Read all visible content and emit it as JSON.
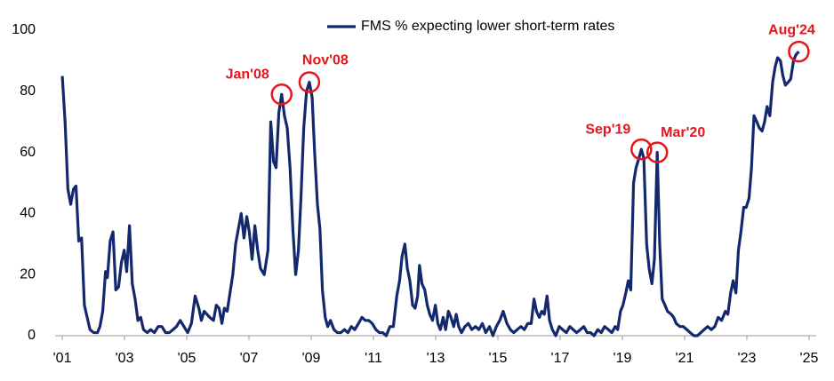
{
  "chart_data": {
    "type": "line",
    "x": [
      2001.0,
      2001.09,
      2001.18,
      2001.27,
      2001.36,
      2001.44,
      2001.53,
      2001.62,
      2001.71,
      2001.8,
      2001.89,
      2002.01,
      2002.13,
      2002.21,
      2002.3,
      2002.39,
      2002.45,
      2002.54,
      2002.63,
      2002.72,
      2002.81,
      2002.9,
      2002.99,
      2003.07,
      2003.16,
      2003.25,
      2003.34,
      2003.43,
      2003.52,
      2003.61,
      2003.73,
      2003.84,
      2003.96,
      2004.08,
      2004.2,
      2004.32,
      2004.44,
      2004.56,
      2004.67,
      2004.79,
      2004.91,
      2005.03,
      2005.15,
      2005.27,
      2005.39,
      2005.47,
      2005.56,
      2005.65,
      2005.74,
      2005.86,
      2005.95,
      2006.04,
      2006.13,
      2006.21,
      2006.3,
      2006.39,
      2006.48,
      2006.57,
      2006.66,
      2006.75,
      2006.84,
      2006.93,
      2007.01,
      2007.1,
      2007.19,
      2007.28,
      2007.37,
      2007.49,
      2007.61,
      2007.7,
      2007.79,
      2007.87,
      2007.96,
      2008.05,
      2008.14,
      2008.23,
      2008.32,
      2008.41,
      2008.5,
      2008.59,
      2008.67,
      2008.76,
      2008.85,
      2008.94,
      2009.03,
      2009.11,
      2009.2,
      2009.28,
      2009.36,
      2009.45,
      2009.53,
      2009.62,
      2009.73,
      2009.84,
      2009.95,
      2010.07,
      2010.18,
      2010.29,
      2010.4,
      2010.52,
      2010.63,
      2010.74,
      2010.85,
      2010.96,
      2011.08,
      2011.19,
      2011.3,
      2011.41,
      2011.53,
      2011.64,
      2011.75,
      2011.84,
      2011.92,
      2012.01,
      2012.09,
      2012.17,
      2012.26,
      2012.34,
      2012.42,
      2012.48,
      2012.56,
      2012.65,
      2012.73,
      2012.81,
      2012.9,
      2012.99,
      2013.07,
      2013.15,
      2013.24,
      2013.32,
      2013.41,
      2013.49,
      2013.58,
      2013.66,
      2013.74,
      2013.83,
      2013.94,
      2014.05,
      2014.16,
      2014.28,
      2014.39,
      2014.5,
      2014.61,
      2014.73,
      2014.84,
      2014.95,
      2015.06,
      2015.17,
      2015.29,
      2015.4,
      2015.51,
      2015.62,
      2015.74,
      2015.85,
      2015.96,
      2016.07,
      2016.16,
      2016.24,
      2016.33,
      2016.41,
      2016.49,
      2016.58,
      2016.66,
      2016.75,
      2016.86,
      2016.97,
      2017.08,
      2017.2,
      2017.31,
      2017.42,
      2017.53,
      2017.65,
      2017.76,
      2017.87,
      2017.98,
      2018.09,
      2018.21,
      2018.32,
      2018.43,
      2018.55,
      2018.66,
      2018.77,
      2018.85,
      2018.94,
      2019.02,
      2019.11,
      2019.19,
      2019.27,
      2019.36,
      2019.44,
      2019.53,
      2019.61,
      2019.69,
      2019.78,
      2019.86,
      2019.95,
      2020.03,
      2020.12,
      2020.2,
      2020.28,
      2020.37,
      2020.45,
      2020.57,
      2020.65,
      2020.73,
      2020.85,
      2020.96,
      2021.07,
      2021.18,
      2021.3,
      2021.41,
      2021.52,
      2021.63,
      2021.74,
      2021.86,
      2021.97,
      2022.08,
      2022.19,
      2022.31,
      2022.39,
      2022.48,
      2022.56,
      2022.65,
      2022.73,
      2022.81,
      2022.9,
      2022.98,
      2023.07,
      2023.15,
      2023.23,
      2023.32,
      2023.4,
      2023.49,
      2023.57,
      2023.65,
      2023.74,
      2023.83,
      2023.91,
      2023.99,
      2024.08,
      2024.16,
      2024.24,
      2024.33,
      2024.41,
      2024.5,
      2024.58,
      2024.67
    ],
    "series": [
      {
        "name": "FMS % expecting lower short-term rates",
        "color": "#14286e",
        "values": [
          85,
          70,
          48,
          43,
          48,
          49,
          31,
          32,
          10,
          6,
          2,
          1,
          1,
          3,
          8,
          21,
          19,
          31,
          34,
          15,
          16,
          24,
          28,
          21,
          36,
          17,
          12,
          5,
          6,
          2,
          1,
          2,
          1,
          3,
          3,
          1,
          1,
          2,
          3,
          5,
          3,
          1,
          4,
          13,
          9,
          5,
          8,
          7,
          6,
          5,
          10,
          9,
          4,
          9,
          8,
          14,
          20,
          30,
          35,
          40,
          32,
          39,
          34,
          25,
          36,
          28,
          22,
          20,
          28,
          70,
          57,
          55,
          73,
          79,
          72,
          68,
          55,
          35,
          20,
          28,
          45,
          68,
          80,
          83,
          78,
          60,
          43,
          35,
          15,
          6,
          3,
          5,
          2,
          1,
          1,
          2,
          1,
          3,
          2,
          4,
          6,
          5,
          5,
          4,
          2,
          1,
          1,
          0,
          3,
          3,
          13,
          18,
          26,
          30,
          22,
          18,
          10,
          9,
          13,
          23,
          17,
          15,
          10,
          7,
          5,
          10,
          4,
          2,
          6,
          2,
          8,
          6,
          3,
          7,
          3,
          1,
          3,
          4,
          2,
          3,
          2,
          4,
          1,
          3,
          0,
          3,
          5,
          8,
          4,
          2,
          1,
          2,
          3,
          2,
          4,
          4,
          12,
          8,
          6,
          8,
          7,
          13,
          5,
          2,
          0,
          3,
          2,
          1,
          3,
          2,
          1,
          2,
          3,
          1,
          1,
          0,
          2,
          1,
          3,
          2,
          1,
          3,
          2,
          8,
          10,
          14,
          18,
          15,
          50,
          55,
          58,
          61,
          58,
          30,
          22,
          17,
          25,
          60,
          30,
          12,
          10,
          8,
          7,
          6,
          4,
          3,
          3,
          2,
          1,
          0,
          0,
          1,
          2,
          3,
          2,
          3,
          6,
          5,
          8,
          7,
          14,
          18,
          14,
          28,
          34,
          42,
          42,
          45,
          55,
          72,
          70,
          68,
          67,
          70,
          75,
          72,
          83,
          88,
          91,
          90,
          85,
          82,
          83,
          84,
          90,
          92,
          93
        ]
      }
    ],
    "xlim": [
      2000.77,
      2025.23
    ],
    "xticks": [
      {
        "value": 2001,
        "label": "'01"
      },
      {
        "value": 2003,
        "label": "'03"
      },
      {
        "value": 2005,
        "label": "'05"
      },
      {
        "value": 2007,
        "label": "'07"
      },
      {
        "value": 2009,
        "label": "'09"
      },
      {
        "value": 2011,
        "label": "'11"
      },
      {
        "value": 2013,
        "label": "'13"
      },
      {
        "value": 2015,
        "label": "'15"
      },
      {
        "value": 2017,
        "label": "'17"
      },
      {
        "value": 2019,
        "label": "'19"
      },
      {
        "value": 2021,
        "label": "'21"
      },
      {
        "value": 2023,
        "label": "'23"
      },
      {
        "value": 2025,
        "label": "'25"
      }
    ],
    "ylim": [
      0,
      100
    ],
    "yticks": [
      0,
      20,
      40,
      60,
      80,
      100
    ],
    "grid": false,
    "legend": "top",
    "annotations": [
      {
        "text": "Jan'08",
        "x": 2008.05,
        "y": 79,
        "color": "#e8141b"
      },
      {
        "text": "Nov'08",
        "x": 2008.94,
        "y": 83,
        "color": "#e8141b"
      },
      {
        "text": "Sep'19",
        "x": 2019.61,
        "y": 61,
        "color": "#e8141b"
      },
      {
        "text": "Mar'20",
        "x": 2020.12,
        "y": 60,
        "color": "#e8141b"
      },
      {
        "text": "Aug'24",
        "x": 2024.67,
        "y": 93,
        "color": "#e8141b"
      }
    ]
  }
}
